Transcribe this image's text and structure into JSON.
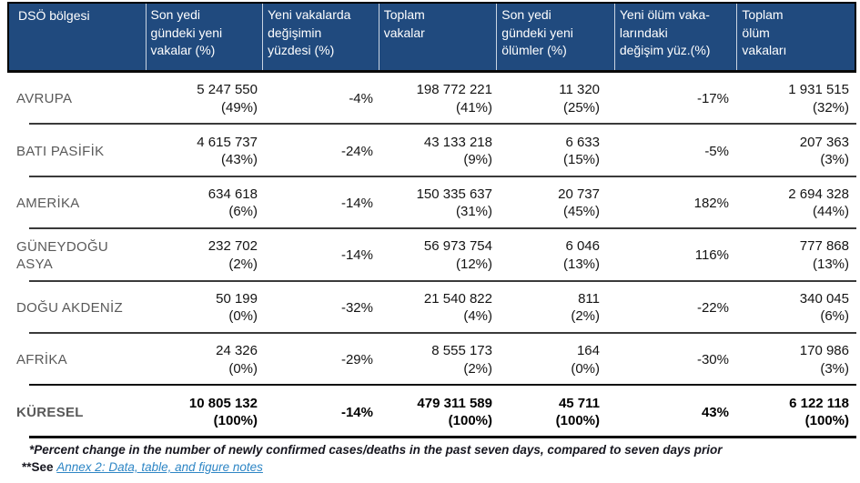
{
  "colors": {
    "header_bg": "#204A7E",
    "header_text": "#ffffff",
    "link_color": "#2E86C5",
    "region_text": "#595959"
  },
  "table": {
    "columns": [
      {
        "label": "DSÖ bölgesi"
      },
      {
        "label": "Son yedi\ngündeki yeni\nvakalar (%)"
      },
      {
        "label": "Yeni vakalarda\ndeğişimin\nyüzdesi (%)"
      },
      {
        "label": "Toplam\nvakalar"
      },
      {
        "label": "Son yedi\ngündeki yeni\nölümler (%)"
      },
      {
        "label": "Yeni ölüm vaka-\nlarındaki\ndeğişim yüz.(%)"
      },
      {
        "label": "Toplam\nölüm\nvakaları"
      }
    ],
    "rows": [
      {
        "region": "AVRUPA",
        "new_cases": "5 247 550",
        "new_cases_pct": "(49%)",
        "case_change": "-4%",
        "total_cases": "198 772 221",
        "total_cases_pct": "(41%)",
        "new_deaths": "11 320",
        "new_deaths_pct": "(25%)",
        "death_change": "-17%",
        "total_deaths": "1 931 515",
        "total_deaths_pct": "(32%)"
      },
      {
        "region": "BATI PASİFİK",
        "new_cases": "4 615 737",
        "new_cases_pct": "(43%)",
        "case_change": "-24%",
        "total_cases": "43 133 218",
        "total_cases_pct": "(9%)",
        "new_deaths": "6 633",
        "new_deaths_pct": "(15%)",
        "death_change": "-5%",
        "total_deaths": "207 363",
        "total_deaths_pct": "(3%)"
      },
      {
        "region": "AMERİKA",
        "new_cases": "634 618",
        "new_cases_pct": "(6%)",
        "case_change": "-14%",
        "total_cases": "150 335 637",
        "total_cases_pct": "(31%)",
        "new_deaths": "20 737",
        "new_deaths_pct": "(45%)",
        "death_change": "182%",
        "total_deaths": "2 694 328",
        "total_deaths_pct": "(44%)"
      },
      {
        "region": "GÜNEYDOĞU ASYA",
        "new_cases": "232 702",
        "new_cases_pct": "(2%)",
        "case_change": "-14%",
        "total_cases": "56 973 754",
        "total_cases_pct": "(12%)",
        "new_deaths": "6 046",
        "new_deaths_pct": "(13%)",
        "death_change": "116%",
        "total_deaths": "777 868",
        "total_deaths_pct": "(13%)"
      },
      {
        "region": "DOĞU AKDENİZ",
        "new_cases": "50 199",
        "new_cases_pct": "(0%)",
        "case_change": "-32%",
        "total_cases": "21 540 822",
        "total_cases_pct": "(4%)",
        "new_deaths": "811",
        "new_deaths_pct": "(2%)",
        "death_change": "-22%",
        "total_deaths": "340 045",
        "total_deaths_pct": "(6%)"
      },
      {
        "region": "AFRİKA",
        "new_cases": "24 326",
        "new_cases_pct": "(0%)",
        "case_change": "-29%",
        "total_cases": "8 555 173",
        "total_cases_pct": "(2%)",
        "new_deaths": "164",
        "new_deaths_pct": "(0%)",
        "death_change": "-30%",
        "total_deaths": "170 986",
        "total_deaths_pct": "(3%)"
      },
      {
        "region": "KÜRESEL",
        "new_cases": "10 805 132",
        "new_cases_pct": "(100%)",
        "case_change": "-14%",
        "total_cases": "479 311 589",
        "total_cases_pct": "(100%)",
        "new_deaths": "45 711",
        "new_deaths_pct": "(100%)",
        "death_change": "43%",
        "total_deaths": "6 122 118",
        "total_deaths_pct": "(100%)"
      }
    ]
  },
  "footnotes": {
    "line1": "*Percent change in the number of newly confirmed cases/deaths in the past seven days, compared to seven days prior",
    "line2_prefix": "**See ",
    "line2_link": "Annex 2: Data, table, and figure notes"
  }
}
